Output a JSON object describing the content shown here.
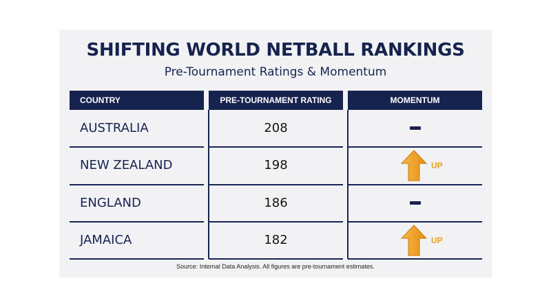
{
  "title": "SHIFTING WORLD NETBALL RANKINGS",
  "subtitle": "Pre-Tournament Ratings & Momentum",
  "headers": {
    "country": "COUNTRY",
    "rating": "PRE-TOURNAMENT RATING",
    "momentum": "MOMENTUM"
  },
  "rows": [
    {
      "country": "AUSTRALIA",
      "rating": "208",
      "momentum": "steady",
      "momentum_label": ""
    },
    {
      "country": "NEW ZEALAND",
      "rating": "198",
      "momentum": "up",
      "momentum_label": "UP"
    },
    {
      "country": "ENGLAND",
      "rating": "186",
      "momentum": "steady",
      "momentum_label": ""
    },
    {
      "country": "JAMAICA",
      "rating": "182",
      "momentum": "up",
      "momentum_label": "UP"
    }
  ],
  "source": "Source: Internal Data Analysis. All figures are pre-tournament estimates.",
  "colors": {
    "navy": "#16234f",
    "arrow_orange": "#f5a623",
    "up_text": "#e8a218",
    "card_bg": "#f2f2f4"
  },
  "icons": {
    "steady": "dash-icon",
    "up": "up-arrow-icon"
  }
}
